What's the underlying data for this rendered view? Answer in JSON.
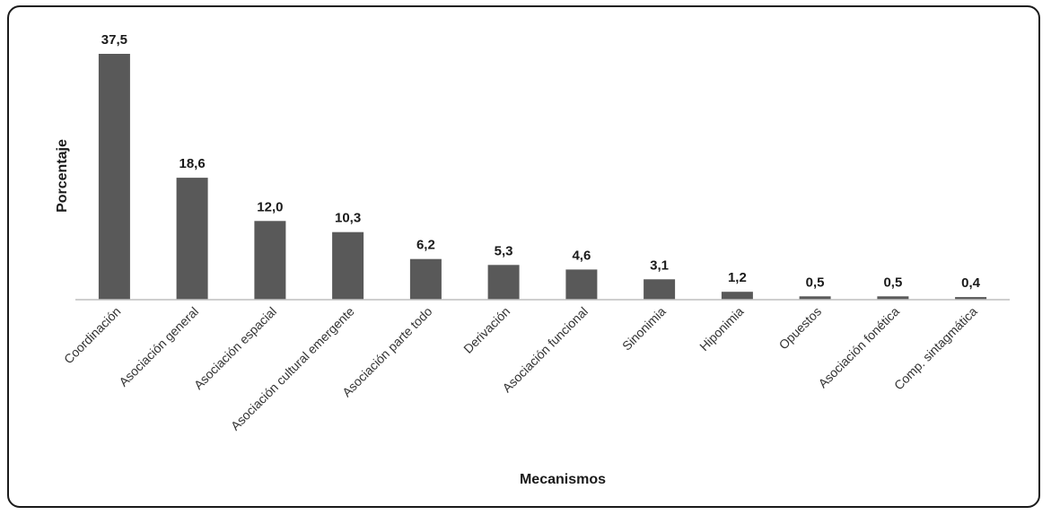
{
  "chart_data": {
    "type": "bar",
    "title": "",
    "xlabel": "Mecanismos",
    "ylabel": "Porcentaje",
    "ylim": [
      0,
      37.5
    ],
    "grid": false,
    "legend": "none",
    "bar_color": "#595959",
    "categories": [
      "Coordinación",
      "Asociación general",
      "Asociación espacial",
      "Asociación cultural emergente",
      "Asociación parte todo",
      "Derivación",
      "Asociación funcional",
      "Sinonimia",
      "Hiponimia",
      "Opuestos",
      "Asociación fonética",
      "Comp. sintagmática"
    ],
    "values": [
      37.5,
      18.6,
      12.0,
      10.3,
      6.2,
      5.3,
      4.6,
      3.1,
      1.2,
      0.5,
      0.5,
      0.4
    ],
    "value_labels": [
      "37,5",
      "18,6",
      "12,0",
      "10,3",
      "6,2",
      "5,3",
      "4,6",
      "3,1",
      "1,2",
      "0,5",
      "0,5",
      "0,4"
    ]
  }
}
